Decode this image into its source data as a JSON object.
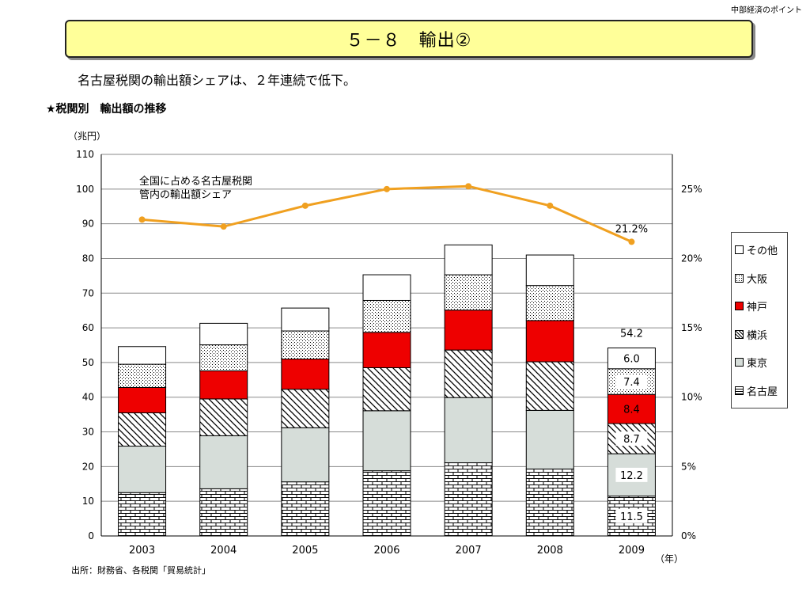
{
  "header": {
    "corner_label": "中部経済のポイント",
    "title": "５－８　輸出②",
    "lead": "名古屋税関の輸出額シェアは、２年連続で低下。",
    "subhead": "★税関別　輸出額の推移"
  },
  "source": "出所：財務省、各税関「貿易統計」",
  "chart_data": {
    "type": "bar",
    "stacked": true,
    "categories": [
      "2003",
      "2004",
      "2005",
      "2006",
      "2007",
      "2008",
      "2009"
    ],
    "xlabel": "（年）",
    "ylabel": "（兆円）",
    "ylim": [
      0,
      110
    ],
    "yticks": [
      0,
      10,
      20,
      30,
      40,
      50,
      60,
      70,
      80,
      90,
      100,
      110
    ],
    "y2lim": [
      0,
      27.5
    ],
    "y2ticks": [
      0,
      5,
      10,
      15,
      20,
      25
    ],
    "y2tick_labels": [
      "0%",
      "5%",
      "10%",
      "15%",
      "20%",
      "25%"
    ],
    "grid": true,
    "legend_position": "right",
    "series": [
      {
        "name": "名古屋",
        "pattern": "brick",
        "color": "#ffffff",
        "values": [
          12.5,
          13.6,
          15.6,
          18.8,
          21.1,
          19.3,
          11.5
        ]
      },
      {
        "name": "東京",
        "pattern": "solid",
        "color": "#d6ddd9",
        "values": [
          13.4,
          15.3,
          15.6,
          17.3,
          18.8,
          16.9,
          12.2
        ]
      },
      {
        "name": "横浜",
        "pattern": "diagonal",
        "color": "#ffffff",
        "values": [
          9.6,
          10.6,
          11.1,
          12.4,
          13.7,
          14.0,
          8.7
        ]
      },
      {
        "name": "神戸",
        "pattern": "solid",
        "color": "#ee0000",
        "values": [
          7.3,
          8.1,
          8.7,
          10.2,
          11.5,
          11.9,
          8.4
        ]
      },
      {
        "name": "大阪",
        "pattern": "dots",
        "color": "#ffffff",
        "values": [
          6.7,
          7.5,
          8.1,
          9.2,
          10.2,
          10.1,
          7.4
        ]
      },
      {
        "name": "その他",
        "pattern": "solid",
        "color": "#ffffff",
        "values": [
          5.1,
          6.2,
          6.6,
          7.4,
          8.6,
          8.8,
          6.0
        ]
      }
    ],
    "totals": [
      54.6,
      61.3,
      65.7,
      75.3,
      83.9,
      81.0,
      54.2
    ],
    "total_label": {
      "category": "2009",
      "text": "54.2"
    },
    "segment_labels": {
      "category": "2009",
      "texts": [
        "11.5",
        "12.2",
        "8.7",
        "8.4",
        "7.4",
        "6.0"
      ]
    },
    "share_line": {
      "label": "全国に占める名古屋税関\n管内の輸出額シェア",
      "color": "#f0a020",
      "values": [
        22.8,
        22.3,
        23.8,
        25.0,
        25.2,
        23.8,
        21.2
      ],
      "last_label": "21.2%"
    }
  }
}
